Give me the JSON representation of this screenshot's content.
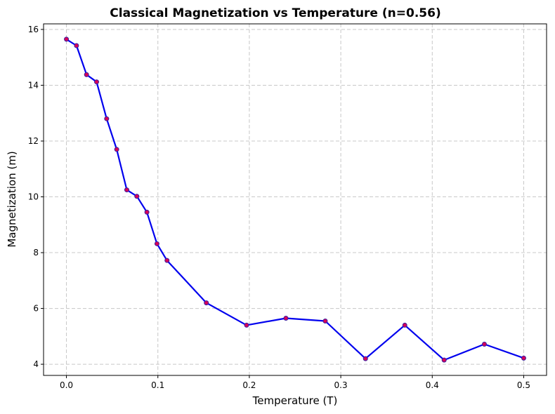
{
  "chart_data": {
    "type": "line",
    "title": "Classical Magnetization vs Temperature (n=0.56)",
    "xlabel": "Temperature (T)",
    "ylabel": "Magnetization (m)",
    "xlim": [
      -0.025,
      0.525
    ],
    "ylim": [
      3.6,
      16.2
    ],
    "xticks": [
      0.0,
      0.1,
      0.2,
      0.3,
      0.4,
      0.5
    ],
    "xtick_labels": [
      "0.0",
      "0.1",
      "0.2",
      "0.3",
      "0.4",
      "0.5"
    ],
    "yticks": [
      4,
      6,
      8,
      10,
      12,
      14,
      16
    ],
    "ytick_labels": [
      "4",
      "6",
      "8",
      "10",
      "12",
      "14",
      "16"
    ],
    "grid": true,
    "line_color": "#0000ee",
    "marker_fill": "#d6005a",
    "marker_edge": "#3a1fa0",
    "series": [
      {
        "x": [
          0.0,
          0.011,
          0.022,
          0.033,
          0.044,
          0.055,
          0.066,
          0.077,
          0.088,
          0.099,
          0.11,
          0.153,
          0.197,
          0.24,
          0.283,
          0.327,
          0.37,
          0.413,
          0.457,
          0.5
        ],
        "y": [
          15.65,
          15.42,
          14.38,
          14.12,
          12.8,
          11.7,
          10.25,
          10.02,
          9.45,
          8.32,
          7.72,
          6.2,
          5.4,
          5.65,
          5.55,
          4.2,
          5.4,
          4.15,
          4.72,
          4.22
        ]
      }
    ]
  }
}
